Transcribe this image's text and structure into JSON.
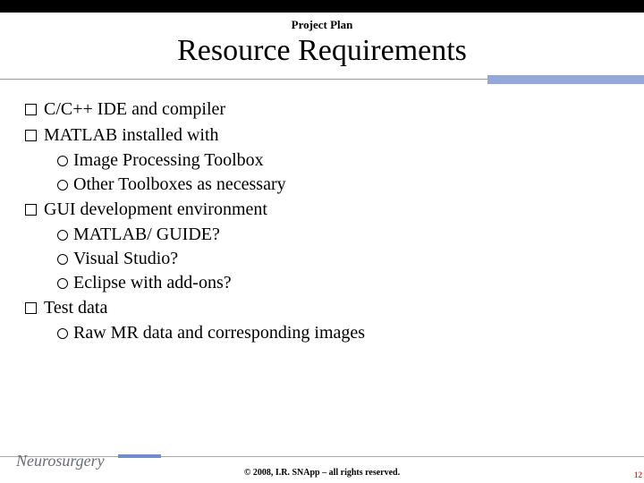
{
  "section_label": "Project Plan",
  "title": "Resource Requirements",
  "items": {
    "i1": "C/C++ IDE and compiler",
    "i2": "MATLAB installed with",
    "i2a": "Image Processing Toolbox",
    "i2b": "Other Toolboxes as necessary",
    "i3": "GUI development environment",
    "i3a": "MATLAB/ GUIDE?",
    "i3b": "Visual Studio?",
    "i3c": "Eclipse with add-ons?",
    "i4": "Test data",
    "i4a": "Raw MR data and corresponding images"
  },
  "logo": "Neurosurgery",
  "copyright": "© 2008, I.R. SNApp – all rights reserved.",
  "pagenum": "12",
  "colors": {
    "accent": "#93a8d8",
    "footer_accent": "#6f8dca",
    "pagenum": "#c7462a"
  }
}
